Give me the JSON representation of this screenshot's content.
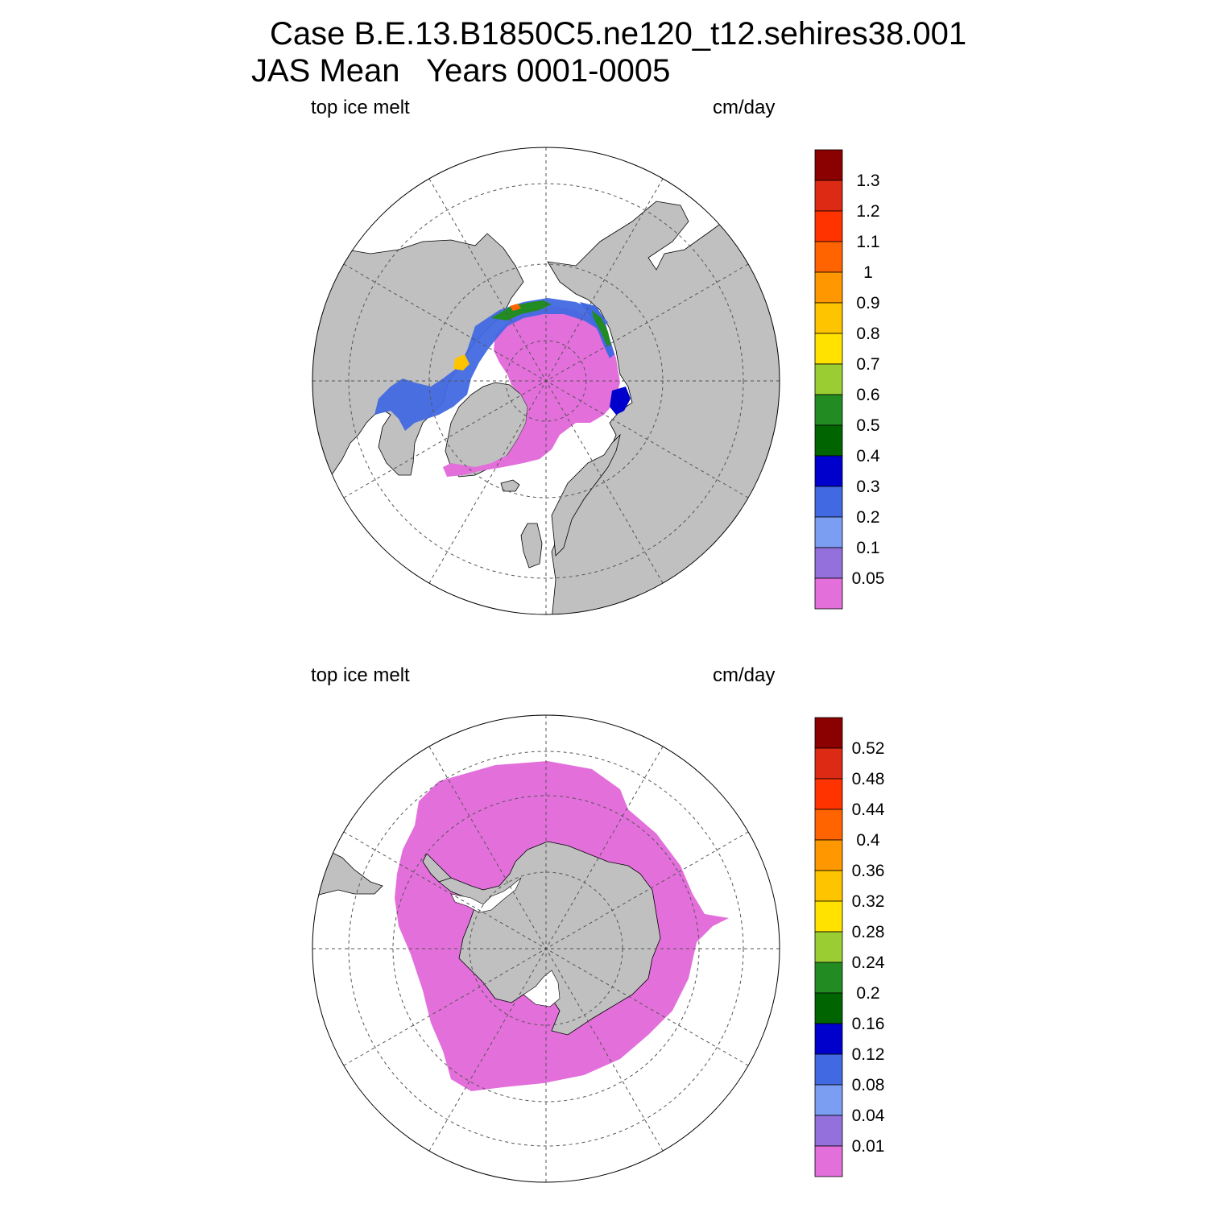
{
  "title": {
    "line1": "Case B.E.13.B1850C5.ne120_t12.sehires38.001",
    "line2": "JAS Mean   Years 0001-0005"
  },
  "panels": [
    {
      "id": "north",
      "left_label": "top ice melt",
      "right_label": "cm/day",
      "hemisphere": "Northern Hemisphere",
      "colorbar": {
        "colors": [
          "#e36fdb",
          "#9370db",
          "#7b9df2",
          "#4169e1",
          "#0000cd",
          "#006400",
          "#228b22",
          "#9acd32",
          "#ffe200",
          "#ffc400",
          "#ff9700",
          "#ff6400",
          "#ff3300",
          "#dc2a14",
          "#8b0000"
        ],
        "labels": [
          "0.05",
          "0.1",
          "0.2",
          "0.3",
          "0.4",
          "0.5",
          "0.6",
          "0.7",
          "0.8",
          "0.9",
          "1",
          "1.1",
          "1.2",
          "1.3"
        ]
      }
    },
    {
      "id": "south",
      "left_label": "top ice melt",
      "right_label": "cm/day",
      "hemisphere": "Southern Hemisphere",
      "colorbar": {
        "colors": [
          "#e36fdb",
          "#9370db",
          "#7b9df2",
          "#4169e1",
          "#0000cd",
          "#006400",
          "#228b22",
          "#9acd32",
          "#ffe200",
          "#ffc400",
          "#ff9700",
          "#ff6400",
          "#ff3300",
          "#dc2a14",
          "#8b0000"
        ],
        "labels": [
          "0.01",
          "0.04",
          "0.08",
          "0.12",
          "0.16",
          "0.2",
          "0.24",
          "0.28",
          "0.32",
          "0.36",
          "0.4",
          "0.44",
          "0.48",
          "0.52"
        ]
      }
    }
  ],
  "colors": {
    "land": "#c0c0c0",
    "ocean": "#ffffff",
    "ice_low": "#e36fdb"
  }
}
